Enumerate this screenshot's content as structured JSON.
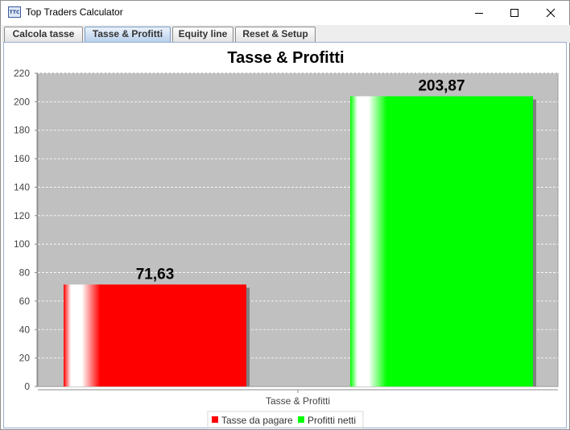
{
  "window": {
    "title": "Top Traders Calculator",
    "icon_label": "TTC",
    "controls": [
      "minimize",
      "maximize",
      "close"
    ]
  },
  "tabs": [
    {
      "label": "Calcola tasse",
      "active": false
    },
    {
      "label": "Tasse & Profitti",
      "active": true
    },
    {
      "label": "Equity line",
      "active": false
    },
    {
      "label": "Reset & Setup",
      "active": false
    }
  ],
  "chart_data": {
    "type": "bar",
    "title": "Tasse & Profitti",
    "categories": [
      "Tasse & Profitti"
    ],
    "series": [
      {
        "name": "Tasse da pagare",
        "values": [
          71.63
        ],
        "label": "71,63",
        "color": "#ff0000"
      },
      {
        "name": "Profitti netti",
        "values": [
          203.87
        ],
        "label": "203,87",
        "color": "#00ff00"
      }
    ],
    "ylim": [
      0,
      220
    ],
    "yticks": [
      "0",
      "20",
      "40",
      "60",
      "80",
      "100",
      "120",
      "140",
      "160",
      "180",
      "200",
      "220"
    ],
    "grid": true,
    "legend": "bottom",
    "plot_background": "#c0c0c0"
  }
}
